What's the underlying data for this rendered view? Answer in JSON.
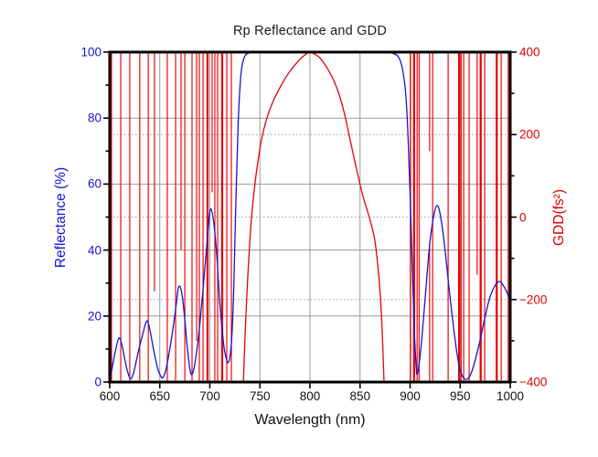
{
  "title": "Rp Reflectance and GDD",
  "colors": {
    "reflectance_blue": "#1414d2",
    "gdd_red": "#e80000",
    "grid_gray": "#9a9a9a",
    "frame_black": "#000000",
    "background": "#ffffff",
    "title_text": "#1a1a1a",
    "x_text": "#111111"
  },
  "chart_data": {
    "type": "line",
    "title": "Rp Reflectance and GDD",
    "xlabel": "Wavelength (nm)",
    "xlim": [
      600,
      1000
    ],
    "x_ticks": [
      600,
      650,
      700,
      750,
      800,
      850,
      900,
      950,
      1000
    ],
    "x_tick_labels": [
      "600",
      "650",
      "700",
      "750",
      "800",
      "850",
      "900",
      "950",
      "1000"
    ],
    "grid_vertical_at": [
      650,
      700,
      750,
      800,
      850,
      900,
      950
    ],
    "left_axis": {
      "label": "Reflectance (%)",
      "color": "#1414d2",
      "lim": [
        0,
        100
      ],
      "ticks": [
        0,
        20,
        40,
        60,
        80,
        100
      ],
      "tick_labels": [
        "0",
        "20",
        "40",
        "60",
        "80",
        "100"
      ],
      "minor_ticks": [
        10,
        30,
        50,
        70,
        90
      ],
      "solid_grid_at": [
        20,
        40,
        60,
        80
      ]
    },
    "right_axis": {
      "label": "GDD(fs²)",
      "color": "#e00000",
      "lim": [
        -400,
        400
      ],
      "ticks": [
        -400,
        -200,
        0,
        200,
        400
      ],
      "tick_labels": [
        "−400",
        "−200",
        "0",
        "200",
        "400"
      ],
      "minor_ticks": [
        -300,
        -100,
        100,
        300
      ],
      "dotted_grid_at": [
        -200,
        0,
        200
      ]
    },
    "legend": "none",
    "series": [
      {
        "name": "Rp Reflectance",
        "axis": "left",
        "color": "#1414d2",
        "points": [
          [
            600,
            1.2
          ],
          [
            602,
            3.5
          ],
          [
            605,
            8.5
          ],
          [
            609,
            13.3
          ],
          [
            612,
            11.5
          ],
          [
            615,
            7
          ],
          [
            618,
            3
          ],
          [
            621,
            1
          ],
          [
            624,
            3
          ],
          [
            628,
            8.5
          ],
          [
            633,
            14.5
          ],
          [
            637,
            18.5
          ],
          [
            640,
            16
          ],
          [
            644,
            9.5
          ],
          [
            648,
            4
          ],
          [
            651,
            1.8
          ],
          [
            653,
            1.3
          ],
          [
            656,
            3.5
          ],
          [
            660,
            10
          ],
          [
            664,
            18
          ],
          [
            667,
            25
          ],
          [
            669,
            29
          ],
          [
            672,
            27
          ],
          [
            675,
            19
          ],
          [
            678,
            9
          ],
          [
            681,
            2.6
          ],
          [
            684,
            4
          ],
          [
            688,
            12
          ],
          [
            692,
            24
          ],
          [
            696,
            38
          ],
          [
            699,
            48.5
          ],
          [
            701,
            52.5
          ],
          [
            704,
            48
          ],
          [
            707,
            38
          ],
          [
            710,
            24
          ],
          [
            714,
            11
          ],
          [
            717,
            6.5
          ],
          [
            718.5,
            6
          ],
          [
            720,
            7.5
          ],
          [
            722,
            14
          ],
          [
            724,
            30
          ],
          [
            726,
            55
          ],
          [
            728,
            76
          ],
          [
            730,
            89
          ],
          [
            732,
            95.5
          ],
          [
            735,
            98.8
          ],
          [
            738,
            99.6
          ],
          [
            742,
            99.9
          ],
          [
            750,
            100
          ],
          [
            770,
            100
          ],
          [
            800,
            100
          ],
          [
            830,
            100
          ],
          [
            860,
            100
          ],
          [
            875,
            100
          ],
          [
            882,
            99.7
          ],
          [
            887,
            99
          ],
          [
            890,
            97.5
          ],
          [
            893,
            94
          ],
          [
            896,
            86
          ],
          [
            898,
            74
          ],
          [
            900,
            57
          ],
          [
            902,
            37
          ],
          [
            904,
            17
          ],
          [
            906,
            5
          ],
          [
            907,
            2.3
          ],
          [
            909,
            5.5
          ],
          [
            912,
            14
          ],
          [
            916,
            29
          ],
          [
            920,
            43
          ],
          [
            924,
            51
          ],
          [
            927,
            53.5
          ],
          [
            930,
            51
          ],
          [
            934,
            42.5
          ],
          [
            938,
            31
          ],
          [
            943,
            17.5
          ],
          [
            948,
            6.5
          ],
          [
            952,
            2
          ],
          [
            956,
            0.8
          ],
          [
            960,
            2
          ],
          [
            964,
            5.5
          ],
          [
            969,
            11.5
          ],
          [
            974,
            18.5
          ],
          [
            979,
            25
          ],
          [
            984,
            28.8
          ],
          [
            989,
            30.5
          ],
          [
            993,
            29.3
          ],
          [
            997,
            27
          ],
          [
            1000,
            24.2
          ]
        ]
      },
      {
        "name": "GDD",
        "axis": "right",
        "color": "#e80000",
        "arc_points": [
          [
            733.5,
            -400
          ],
          [
            734.5,
            -330
          ],
          [
            736,
            -240
          ],
          [
            738,
            -140
          ],
          [
            740,
            -55
          ],
          [
            742,
            10
          ],
          [
            745,
            80
          ],
          [
            748,
            135
          ],
          [
            752,
            192
          ],
          [
            757,
            240
          ],
          [
            763,
            280
          ],
          [
            770,
            314
          ],
          [
            777,
            343
          ],
          [
            784,
            366
          ],
          [
            791,
            385
          ],
          [
            796,
            395
          ],
          [
            800,
            400
          ],
          [
            804,
            396
          ],
          [
            809,
            388
          ],
          [
            814,
            373
          ],
          [
            819,
            354
          ],
          [
            824,
            330
          ],
          [
            829,
            298
          ],
          [
            834,
            255
          ],
          [
            839,
            200
          ],
          [
            843,
            155
          ],
          [
            848,
            100
          ],
          [
            853,
            50
          ],
          [
            858,
            10
          ],
          [
            862,
            -25
          ],
          [
            865,
            -60
          ],
          [
            867,
            -100
          ],
          [
            869,
            -150
          ],
          [
            871,
            -220
          ],
          [
            872.5,
            -300
          ],
          [
            874,
            -400
          ]
        ],
        "resonance_spikes": [
          {
            "nm": 600.8,
            "seg": [
              -245,
              -400
            ]
          },
          {
            "nm": 601.8
          },
          {
            "nm": 611
          },
          {
            "nm": 620
          },
          {
            "nm": 630
          },
          {
            "nm": 638.5
          },
          {
            "nm": 644.7,
            "seg": [
              400,
              -180
            ]
          },
          {
            "nm": 657.5
          },
          {
            "nm": 665.8
          },
          {
            "nm": 671.2,
            "seg": [
              400,
              -80
            ]
          },
          {
            "nm": 675
          },
          {
            "nm": 682.2
          },
          {
            "nm": 686.8,
            "seg": [
              400,
              -300
            ]
          },
          {
            "nm": 689.5
          },
          {
            "nm": 693.2
          },
          {
            "nm": 697.7,
            "w": 2
          },
          {
            "nm": 702.3,
            "seg": [
              400,
              60
            ]
          },
          {
            "nm": 705
          },
          {
            "nm": 707.8
          },
          {
            "nm": 712.3,
            "w": 2
          },
          {
            "nm": 716.9
          },
          {
            "nm": 721.5
          },
          {
            "nm": 900.5
          },
          {
            "nm": 904,
            "w": 2
          },
          {
            "nm": 907
          },
          {
            "nm": 909
          },
          {
            "nm": 919.5,
            "seg": [
              400,
              160
            ]
          },
          {
            "nm": 919.5,
            "seg": [
              -60,
              -400
            ]
          },
          {
            "nm": 922.5
          },
          {
            "nm": 938
          },
          {
            "nm": 949,
            "w": 2
          },
          {
            "nm": 951
          },
          {
            "nm": 953.5
          },
          {
            "nm": 959
          },
          {
            "nm": 967,
            "seg": [
              400,
              -140
            ]
          },
          {
            "nm": 970.5,
            "w": 2
          },
          {
            "nm": 974.5
          },
          {
            "nm": 986.5,
            "w": 2
          },
          {
            "nm": 991
          },
          {
            "nm": 998
          }
        ]
      }
    ]
  }
}
